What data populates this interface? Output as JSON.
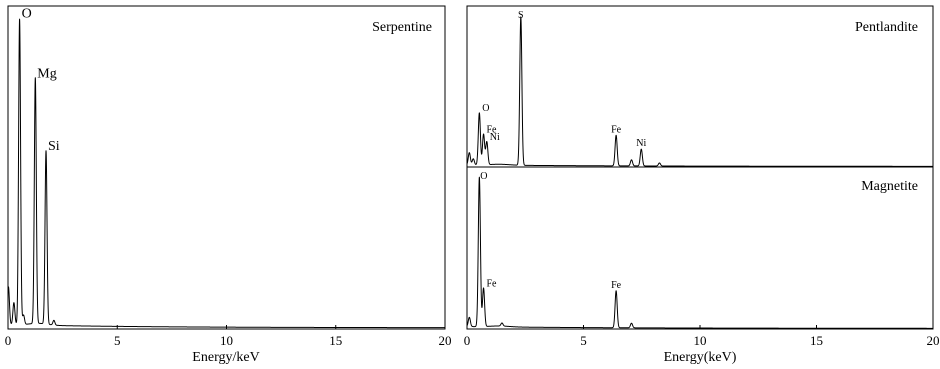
{
  "chart_data": [
    {
      "type": "line",
      "panel": "left",
      "annotation_label": "Serpentine",
      "xlabel": "Energy/keV",
      "ylabel": "",
      "xlim": [
        0,
        20
      ],
      "xticks": [
        "0",
        "5",
        "10",
        "15",
        "20"
      ],
      "grid": false,
      "peak_labels": [
        {
          "text": "O",
          "x": 0.53
        },
        {
          "text": "Mg",
          "x": 1.25
        },
        {
          "text": "Si",
          "x": 1.74
        }
      ],
      "series": [
        {
          "peaks": [
            {
              "x": 0.02,
              "y": 0.12
            },
            {
              "x": 0.27,
              "y": 0.07
            },
            {
              "x": 0.53,
              "y": 0.97
            },
            {
              "x": 0.71,
              "y": 0.03
            },
            {
              "x": 1.25,
              "y": 0.78
            },
            {
              "x": 1.74,
              "y": 0.55
            },
            {
              "x": 2.1,
              "y": 0.015
            }
          ],
          "background": 0.01
        }
      ]
    },
    {
      "type": "line",
      "panel": "right-top",
      "annotation_label": "Pentlandite",
      "xlim": [
        0,
        20
      ],
      "grid": false,
      "peak_labels": [
        {
          "text": "S",
          "x": 2.31
        },
        {
          "text": "O",
          "x": 0.53
        },
        {
          "text": "Fe",
          "x": 0.71
        },
        {
          "text": "Ni",
          "x": 0.85
        },
        {
          "text": "Fe",
          "x": 6.4
        },
        {
          "text": "Ni",
          "x": 7.48
        }
      ],
      "series": [
        {
          "peaks": [
            {
              "x": 0.1,
              "y": 0.08
            },
            {
              "x": 0.27,
              "y": 0.04
            },
            {
              "x": 0.53,
              "y": 0.34
            },
            {
              "x": 0.71,
              "y": 0.2
            },
            {
              "x": 0.85,
              "y": 0.15
            },
            {
              "x": 2.31,
              "y": 0.97
            },
            {
              "x": 6.4,
              "y": 0.2
            },
            {
              "x": 7.06,
              "y": 0.04
            },
            {
              "x": 7.48,
              "y": 0.11
            },
            {
              "x": 8.26,
              "y": 0.02
            }
          ],
          "background": 0.01
        }
      ]
    },
    {
      "type": "line",
      "panel": "right-bottom",
      "annotation_label": "Magnetite",
      "xlabel": "Energy(keV)",
      "ylabel": "",
      "xlim": [
        0,
        20
      ],
      "xticks": [
        "0",
        "5",
        "10",
        "15",
        "20"
      ],
      "grid": false,
      "peak_labels": [
        {
          "text": "O",
          "x": 0.53
        },
        {
          "text": "Fe",
          "x": 0.71
        },
        {
          "text": "Fe",
          "x": 6.4
        }
      ],
      "series": [
        {
          "peaks": [
            {
              "x": 0.1,
              "y": 0.06
            },
            {
              "x": 0.53,
              "y": 0.97
            },
            {
              "x": 0.71,
              "y": 0.25
            },
            {
              "x": 1.5,
              "y": 0.02
            },
            {
              "x": 6.4,
              "y": 0.24
            },
            {
              "x": 7.06,
              "y": 0.03
            }
          ],
          "background": 0.012
        }
      ]
    }
  ]
}
